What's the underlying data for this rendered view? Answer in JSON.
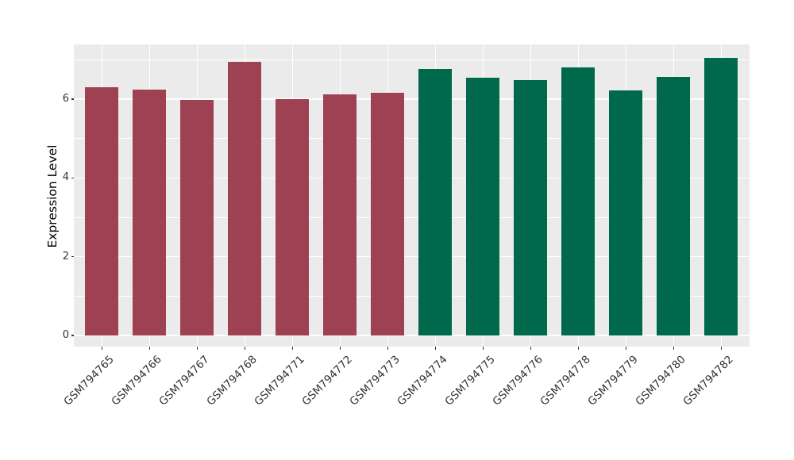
{
  "figure": {
    "background": "#ffffff",
    "panel_background": "#ebebeb",
    "grid_color": "#ffffff",
    "tick_text_color": "#333333",
    "axis_title_color": "#000000"
  },
  "chart_data": {
    "type": "bar",
    "title": "",
    "xlabel": "",
    "ylabel": "Expression Level",
    "categories": [
      "GSM794765",
      "GSM794766",
      "GSM794767",
      "GSM794768",
      "GSM794771",
      "GSM794772",
      "GSM794773",
      "GSM794774",
      "GSM794775",
      "GSM794776",
      "GSM794778",
      "GSM794779",
      "GSM794780",
      "GSM794782"
    ],
    "values": [
      6.3,
      6.24,
      5.97,
      6.95,
      5.99,
      6.12,
      6.17,
      6.77,
      6.55,
      6.48,
      6.8,
      6.23,
      6.56,
      7.04
    ],
    "bar_groups": [
      0,
      0,
      0,
      0,
      0,
      0,
      0,
      1,
      1,
      1,
      1,
      1,
      1,
      1
    ],
    "group_colors": [
      "#9e4153",
      "#00694c"
    ],
    "yticks": [
      0,
      2,
      4,
      6
    ],
    "yticks_minor": [
      1,
      3,
      5,
      7
    ],
    "ylim": [
      -0.28,
      7.39
    ],
    "grid": true,
    "legend_position": "none",
    "x_tick_rotation_deg": 45,
    "bar_width_fraction": 0.7
  }
}
